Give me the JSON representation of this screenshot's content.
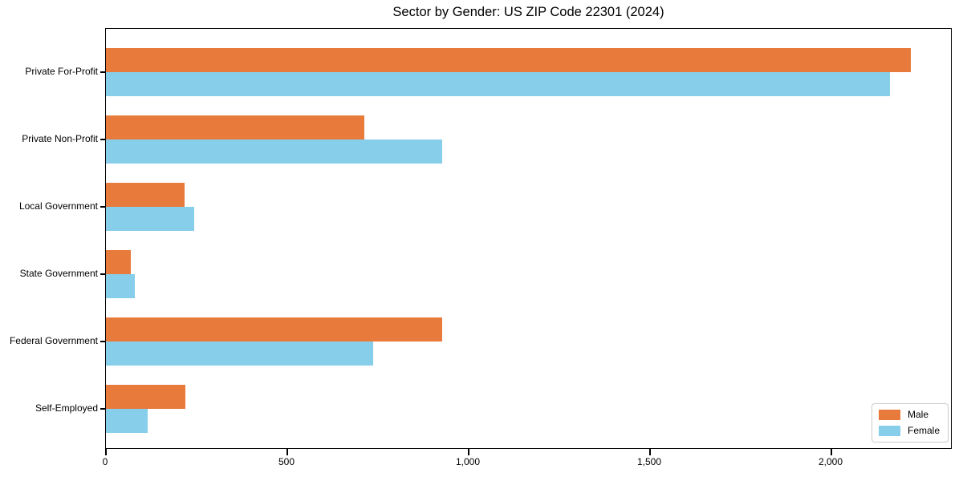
{
  "chart_data": {
    "type": "bar",
    "orientation": "horizontal",
    "title": "Sector by Gender: US ZIP Code 22301 (2024)",
    "categories": [
      "Private For-Profit",
      "Private Non-Profit",
      "Local Government",
      "State Government",
      "Federal Government",
      "Self-Employed"
    ],
    "series": [
      {
        "name": "Male",
        "color": "#e87a3c",
        "values": [
          2220,
          712,
          217,
          68,
          928,
          220
        ]
      },
      {
        "name": "Female",
        "color": "#87ceeb",
        "values": [
          2162,
          926,
          243,
          79,
          736,
          116
        ]
      }
    ],
    "xlabel": "",
    "ylabel": "",
    "xlim": [
      0,
      2334
    ],
    "xticks": [
      {
        "value": 0,
        "label": "0"
      },
      {
        "value": 500,
        "label": "500"
      },
      {
        "value": 1000,
        "label": "1,000"
      },
      {
        "value": 1500,
        "label": "1,500"
      },
      {
        "value": 2000,
        "label": "2,000"
      }
    ],
    "grid": false,
    "legend": {
      "position": "lower right"
    },
    "colors": {
      "background": "#ffffff",
      "axis": "#000000",
      "legend_border": "#cccccc"
    }
  }
}
